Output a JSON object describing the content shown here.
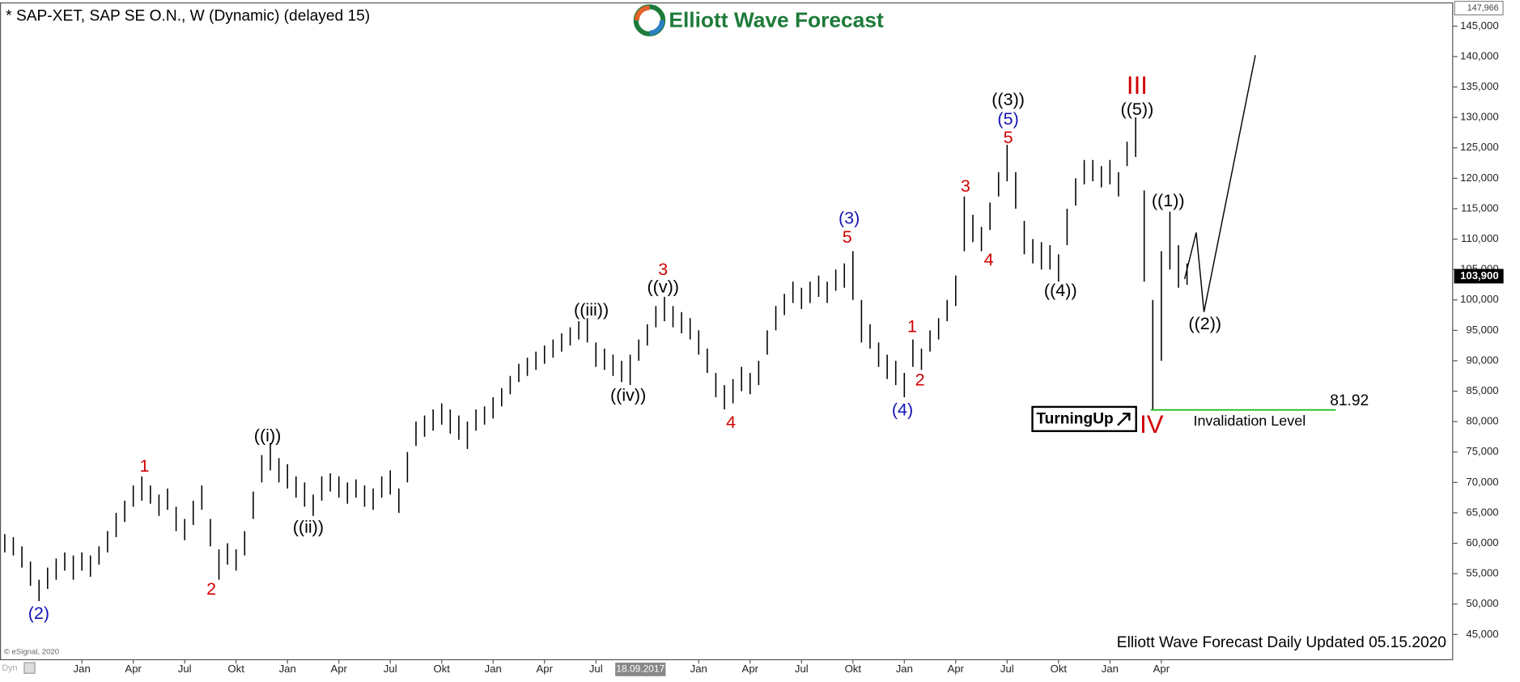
{
  "chart_data": {
    "type": "ohlc",
    "title": "* SAP-XET, SAP SE O.N., W (Dynamic) (delayed 15)",
    "logo": "Elliott Wave Forecast",
    "footer": "Elliott Wave Forecast Daily Updated 05.15.2020",
    "copyright": "© eSignal, 2020",
    "corner": "Dyn",
    "turning_up": "TurningUp",
    "color": "#000000",
    "x": [
      -4.5,
      -4,
      -3.5,
      -3,
      -2.5,
      -2,
      -1.5,
      -1,
      -0.5,
      0,
      0.5,
      1,
      1.5,
      2,
      2.5,
      3,
      3.5,
      4,
      4.5,
      5,
      5.5,
      6,
      6.5,
      7,
      7.5,
      8,
      8.5,
      9,
      9.5,
      10,
      10.5,
      11,
      11.5,
      12,
      12.5,
      13,
      13.5,
      14,
      14.5,
      15,
      15.5,
      16,
      16.5,
      17,
      17.5,
      18,
      18.5,
      19,
      19.5,
      20,
      20.5,
      21,
      21.5,
      22,
      22.5,
      23,
      23.5,
      24,
      24.5,
      25,
      25.5,
      26,
      26.5,
      27,
      27.5,
      28,
      28.5,
      29,
      29.5,
      30,
      30.5,
      31,
      31.5,
      32,
      32.5,
      33,
      33.5,
      34,
      34.5,
      35,
      35.5,
      36,
      36.5,
      37,
      37.5,
      38,
      38.5,
      39,
      39.5,
      40,
      40.5,
      41,
      41.5,
      42,
      42.5,
      43,
      43.5,
      44,
      44.5,
      45,
      45.5,
      46,
      46.5,
      47,
      47.5,
      48,
      48.5,
      49,
      49.5,
      50,
      50.5,
      51,
      51.5,
      52,
      52.5,
      53,
      53.5,
      54,
      54.5,
      55,
      55.5,
      56,
      56.5,
      57,
      57.5,
      58,
      58.5,
      59,
      59.5,
      60,
      60.5,
      61,
      61.5,
      62,
      62.5,
      63,
      63.5,
      64,
      64.5
    ],
    "high": [
      61500,
      61000,
      59500,
      57000,
      54000,
      56000,
      57500,
      58500,
      58000,
      58500,
      58000,
      59500,
      62000,
      65000,
      67000,
      69500,
      71000,
      69500,
      68000,
      69000,
      66000,
      64000,
      67000,
      69500,
      64000,
      59000,
      60000,
      59000,
      62000,
      68500,
      74500,
      76500,
      74000,
      73000,
      71000,
      70000,
      68000,
      71000,
      71500,
      71000,
      70000,
      70500,
      69500,
      69000,
      71000,
      72000,
      69000,
      75000,
      80000,
      81000,
      82000,
      83000,
      82000,
      81000,
      80000,
      82000,
      82500,
      84000,
      85500,
      87500,
      89500,
      90500,
      91500,
      92500,
      93500,
      94500,
      95500,
      96500,
      97000,
      93000,
      92000,
      91000,
      90000,
      91000,
      93500,
      96000,
      99000,
      100500,
      99000,
      98000,
      97000,
      95000,
      92000,
      88000,
      86000,
      87000,
      89000,
      88000,
      90000,
      95000,
      99000,
      101000,
      103000,
      102000,
      103000,
      104000,
      103000,
      105000,
      106000,
      108000,
      100000,
      96000,
      93000,
      91000,
      90000,
      88000,
      93500,
      92000,
      95000,
      97000,
      100000,
      104000,
      117000,
      114000,
      112000,
      116000,
      121000,
      125500,
      121000,
      113000,
      110000,
      109500,
      109000,
      107500,
      115000,
      120000,
      123000,
      123000,
      122000,
      123000,
      121000,
      126000,
      130000,
      118000,
      100000,
      108000,
      114500,
      109000,
      106000
    ],
    "low": [
      58500,
      58000,
      56000,
      53000,
      50500,
      52500,
      54000,
      55500,
      54000,
      55500,
      54500,
      56500,
      58500,
      61000,
      63500,
      66000,
      67000,
      66500,
      64500,
      65500,
      62000,
      60500,
      63000,
      65500,
      59500,
      54000,
      56500,
      55500,
      58000,
      64000,
      70000,
      72000,
      70000,
      69000,
      67500,
      66000,
      64500,
      67000,
      68500,
      67500,
      66500,
      67500,
      66000,
      65500,
      67500,
      68000,
      65000,
      70000,
      76000,
      77500,
      78500,
      79500,
      78000,
      77000,
      75500,
      78500,
      79500,
      80500,
      82500,
      84500,
      86500,
      87500,
      88500,
      89500,
      90500,
      91500,
      92500,
      93500,
      93000,
      89000,
      88500,
      87500,
      86500,
      86000,
      90000,
      92500,
      95500,
      96500,
      95500,
      94500,
      93500,
      91000,
      88000,
      84000,
      82000,
      83000,
      85000,
      84500,
      86000,
      91000,
      95000,
      97500,
      99500,
      98500,
      99500,
      100500,
      99500,
      101500,
      102000,
      100000,
      93000,
      92000,
      89000,
      87000,
      86000,
      84000,
      89000,
      88500,
      91500,
      93500,
      96500,
      99000,
      108000,
      109500,
      108000,
      111500,
      117000,
      119500,
      115000,
      107500,
      106000,
      105000,
      105000,
      103000,
      109000,
      115500,
      119000,
      119500,
      118500,
      119000,
      117000,
      122000,
      123500,
      103000,
      82000,
      90000,
      105000,
      102000,
      102500
    ],
    "xlim": [
      -4.75,
      80
    ],
    "xticks": [
      {
        "value": 0,
        "label": "Jan"
      },
      {
        "value": 3,
        "label": "Apr"
      },
      {
        "value": 6,
        "label": "Jul"
      },
      {
        "value": 9,
        "label": "Okt"
      },
      {
        "value": 12,
        "label": "Jan"
      },
      {
        "value": 15,
        "label": "Apr"
      },
      {
        "value": 18,
        "label": "Jul"
      },
      {
        "value": 21,
        "label": "Okt"
      },
      {
        "value": 24,
        "label": "Jan"
      },
      {
        "value": 27,
        "label": "Apr"
      },
      {
        "value": 30,
        "label": "Jul"
      },
      {
        "value": 36,
        "label": "Jan"
      },
      {
        "value": 39,
        "label": "Apr"
      },
      {
        "value": 42,
        "label": "Jul"
      },
      {
        "value": 45,
        "label": "Okt"
      },
      {
        "value": 48,
        "label": "Jan"
      },
      {
        "value": 51,
        "label": "Apr"
      },
      {
        "value": 54,
        "label": "Jul"
      },
      {
        "value": 57,
        "label": "Okt"
      },
      {
        "value": 60,
        "label": "Jan"
      },
      {
        "value": 63,
        "label": "Apr"
      }
    ],
    "cursor_tick": {
      "value": 32.6,
      "label": "18.09.2017"
    },
    "ylim": [
      40860,
      148820
    ],
    "yticks": [
      {
        "value": 45000,
        "label": "45,000"
      },
      {
        "value": 50000,
        "label": "50,000"
      },
      {
        "value": 55000,
        "label": "55,000"
      },
      {
        "value": 60000,
        "label": "60,000"
      },
      {
        "value": 65000,
        "label": "65,000"
      },
      {
        "value": 70000,
        "label": "70,000"
      },
      {
        "value": 75000,
        "label": "75,000"
      },
      {
        "value": 80000,
        "label": "80,000"
      },
      {
        "value": 85000,
        "label": "85,000"
      },
      {
        "value": 90000,
        "label": "90,000"
      },
      {
        "value": 95000,
        "label": "95,000"
      },
      {
        "value": 100000,
        "label": "100,000"
      },
      {
        "value": 105000,
        "label": "105,000"
      },
      {
        "value": 110000,
        "label": "110,000"
      },
      {
        "value": 115000,
        "label": "115,000"
      },
      {
        "value": 120000,
        "label": "120,000"
      },
      {
        "value": 125000,
        "label": "125,000"
      },
      {
        "value": 130000,
        "label": "130,000"
      },
      {
        "value": 135000,
        "label": "135,000"
      },
      {
        "value": 140000,
        "label": "140,000"
      },
      {
        "value": 145000,
        "label": "145,000"
      }
    ],
    "price_marks": [
      {
        "value": 147966,
        "label": "147,966"
      },
      {
        "value": 103900,
        "label": "103,900"
      }
    ],
    "invalidation": {
      "value": 81920,
      "label": "81.92",
      "text": "Invalidation Level",
      "color": "#22bb22"
    },
    "annotations": [
      {
        "text": "(2)",
        "color": "#1414b4"
      },
      {
        "text": "1",
        "color": "#d00000"
      },
      {
        "text": "2",
        "color": "#d00000"
      },
      {
        "text": "((i))",
        "color": "#000000"
      },
      {
        "text": "((ii))",
        "color": "#000000"
      },
      {
        "text": "((iii))",
        "color": "#000000"
      },
      {
        "text": "((iv))",
        "color": "#000000"
      },
      {
        "text": "3",
        "color": "#d00000"
      },
      {
        "text": "((v))",
        "color": "#000000"
      },
      {
        "text": "4",
        "color": "#d00000"
      },
      {
        "text": "(3)",
        "color": "#1414b4"
      },
      {
        "text": "5",
        "color": "#d00000"
      },
      {
        "text": "(4)",
        "color": "#1414b4"
      },
      {
        "text": "1",
        "color": "#d00000"
      },
      {
        "text": "2",
        "color": "#d00000"
      },
      {
        "text": "3",
        "color": "#d00000"
      },
      {
        "text": "4",
        "color": "#d00000"
      },
      {
        "text": "5",
        "color": "#d00000"
      },
      {
        "text": "(5)",
        "color": "#1414b4"
      },
      {
        "text": "((3))",
        "color": "#000000"
      },
      {
        "text": "((4))",
        "color": "#000000"
      },
      {
        "text": "((5))",
        "color": "#000000"
      },
      {
        "text": "III",
        "color": "#d00000"
      },
      {
        "text": "IV",
        "color": "#d00000"
      },
      {
        "text": "((1))",
        "color": "#000000"
      },
      {
        "text": "((2))",
        "color": "#000000"
      }
    ]
  }
}
